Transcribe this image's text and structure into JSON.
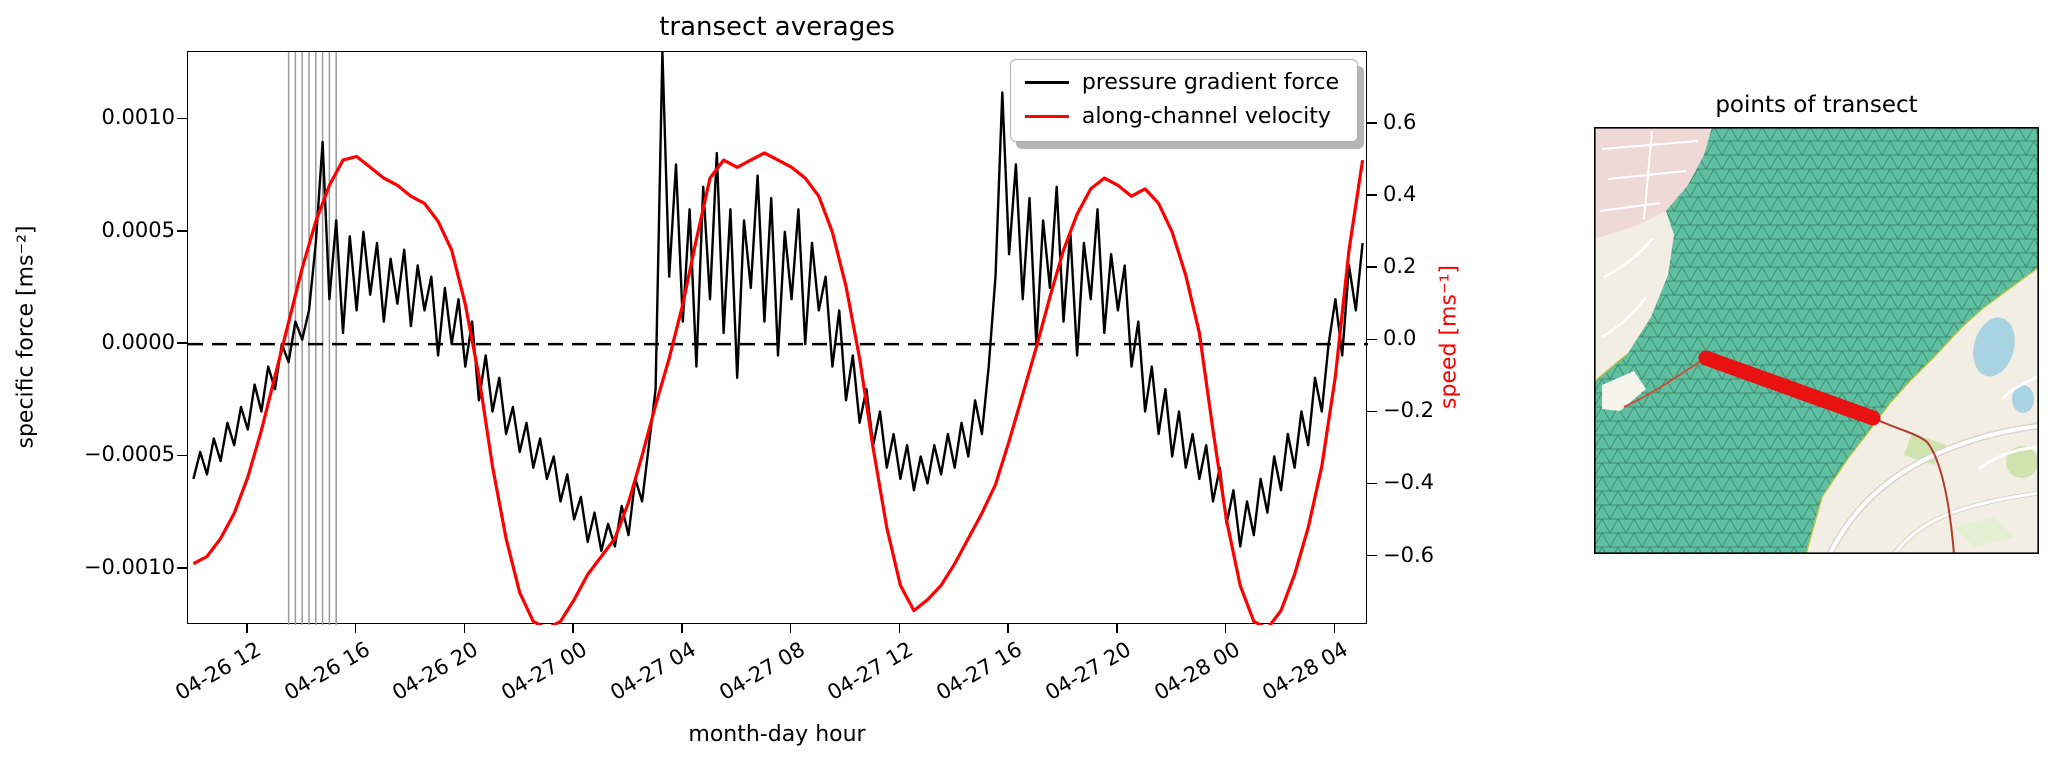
{
  "chart_data": {
    "type": "line",
    "title": "transect averages",
    "xlabel": "month-day hour",
    "ylabel_left": "specific force [ms⁻²]",
    "ylabel_right": "speed [ms⁻¹]",
    "x_unit": "hours since 04-26 00:00",
    "xlim": [
      9.8,
      53.2
    ],
    "ylim_left": [
      -0.00125,
      0.0013
    ],
    "ylim_right": [
      -0.79,
      0.8
    ],
    "grid": false,
    "zero_line": {
      "style": "dashed",
      "value": 0,
      "color": "#000000"
    },
    "event_vlines_t": [
      13.5,
      13.75,
      14.0,
      14.25,
      14.5,
      14.75,
      15.0,
      15.25
    ],
    "x_ticks": {
      "values": [
        12,
        16,
        20,
        24,
        28,
        32,
        36,
        40,
        44,
        48,
        52
      ],
      "labels": [
        "04-26 12",
        "04-26 16",
        "04-26 20",
        "04-27 00",
        "04-27 04",
        "04-27 08",
        "04-27 12",
        "04-27 16",
        "04-27 20",
        "04-28 00",
        "04-28 04"
      ]
    },
    "y_ticks_left": {
      "values": [
        0.001,
        0.0005,
        0.0,
        -0.0005,
        -0.001
      ],
      "labels": [
        "0.0010",
        "0.0005",
        "0.0000",
        "−0.0005",
        "−0.0010"
      ]
    },
    "y_ticks_right": {
      "values": [
        0.6,
        0.4,
        0.2,
        0.0,
        -0.2,
        -0.4,
        -0.6
      ],
      "labels": [
        "0.6",
        "0.4",
        "0.2",
        "0.0",
        "−0.2",
        "−0.4",
        "−0.6"
      ]
    },
    "legend": {
      "position": "upper right",
      "entries": [
        "pressure gradient force",
        "along-channel velocity"
      ]
    },
    "series": [
      {
        "name": "pressure gradient force",
        "color": "#000000",
        "axis": "left",
        "width": 2.4,
        "t0": 10.0,
        "dt": 0.25,
        "scale": 0.001,
        "values": [
          -0.6,
          -0.48,
          -0.58,
          -0.42,
          -0.52,
          -0.35,
          -0.45,
          -0.28,
          -0.38,
          -0.18,
          -0.3,
          -0.1,
          -0.2,
          0.0,
          -0.08,
          0.1,
          0.02,
          0.15,
          0.45,
          0.9,
          0.2,
          0.55,
          0.05,
          0.48,
          0.15,
          0.5,
          0.22,
          0.45,
          0.1,
          0.38,
          0.18,
          0.42,
          0.08,
          0.35,
          0.15,
          0.3,
          -0.05,
          0.25,
          0.0,
          0.2,
          -0.1,
          0.1,
          -0.25,
          -0.05,
          -0.3,
          -0.15,
          -0.4,
          -0.28,
          -0.48,
          -0.35,
          -0.55,
          -0.42,
          -0.6,
          -0.5,
          -0.7,
          -0.58,
          -0.78,
          -0.68,
          -0.88,
          -0.75,
          -0.92,
          -0.8,
          -0.9,
          -0.72,
          -0.85,
          -0.6,
          -0.7,
          -0.45,
          -0.2,
          1.3,
          0.3,
          0.8,
          0.1,
          0.6,
          -0.1,
          0.7,
          0.2,
          0.85,
          0.05,
          0.6,
          -0.15,
          0.55,
          0.25,
          0.75,
          0.1,
          0.65,
          -0.05,
          0.5,
          0.2,
          0.6,
          0.0,
          0.45,
          0.15,
          0.3,
          -0.1,
          0.15,
          -0.25,
          -0.05,
          -0.35,
          -0.2,
          -0.45,
          -0.3,
          -0.55,
          -0.4,
          -0.6,
          -0.45,
          -0.65,
          -0.5,
          -0.62,
          -0.45,
          -0.58,
          -0.4,
          -0.55,
          -0.35,
          -0.5,
          -0.25,
          -0.4,
          -0.1,
          0.3,
          1.12,
          0.4,
          0.8,
          0.2,
          0.65,
          0.0,
          0.55,
          0.25,
          0.7,
          0.1,
          0.5,
          -0.05,
          0.45,
          0.2,
          0.6,
          0.05,
          0.4,
          0.15,
          0.35,
          -0.1,
          0.1,
          -0.3,
          -0.1,
          -0.4,
          -0.2,
          -0.5,
          -0.3,
          -0.55,
          -0.4,
          -0.6,
          -0.45,
          -0.7,
          -0.55,
          -0.8,
          -0.65,
          -0.9,
          -0.7,
          -0.85,
          -0.6,
          -0.75,
          -0.5,
          -0.65,
          -0.4,
          -0.55,
          -0.3,
          -0.45,
          -0.15,
          -0.3,
          0.0,
          0.2,
          -0.05,
          0.35,
          0.15,
          0.45
        ]
      },
      {
        "name": "along-channel velocity",
        "color": "#ff0000",
        "axis": "right",
        "width": 3.2,
        "t0": 10.0,
        "dt": 0.5,
        "scale": 1,
        "values": [
          -0.62,
          -0.6,
          -0.55,
          -0.48,
          -0.38,
          -0.25,
          -0.1,
          0.05,
          0.2,
          0.33,
          0.43,
          0.5,
          0.51,
          0.48,
          0.45,
          0.43,
          0.4,
          0.38,
          0.33,
          0.25,
          0.1,
          -0.1,
          -0.35,
          -0.55,
          -0.7,
          -0.78,
          -0.8,
          -0.78,
          -0.72,
          -0.65,
          -0.6,
          -0.55,
          -0.45,
          -0.32,
          -0.18,
          -0.05,
          0.1,
          0.28,
          0.45,
          0.5,
          0.48,
          0.5,
          0.52,
          0.5,
          0.48,
          0.45,
          0.4,
          0.3,
          0.15,
          -0.05,
          -0.3,
          -0.52,
          -0.68,
          -0.75,
          -0.72,
          -0.68,
          -0.62,
          -0.55,
          -0.48,
          -0.4,
          -0.28,
          -0.15,
          -0.02,
          0.12,
          0.25,
          0.35,
          0.42,
          0.45,
          0.43,
          0.4,
          0.42,
          0.38,
          0.3,
          0.18,
          0.02,
          -0.25,
          -0.5,
          -0.68,
          -0.78,
          -0.8,
          -0.75,
          -0.65,
          -0.52,
          -0.35,
          -0.1,
          0.25,
          0.5
        ]
      }
    ]
  },
  "map": {
    "title": "points of transect",
    "water_color": "#5fc0a1",
    "mesh_line_color": "#2f7057",
    "mesh_boundary_color": "#b8c23f",
    "transect_color": "#e81212",
    "land_color": "#f2eee3",
    "urban_color": "#eed9d6",
    "pond_color": "#a9d3e0",
    "road_color": "#ffffff",
    "road_casing_color": "#d9d5c9",
    "shore_red": "#cf4a38",
    "rail_color": "#b23b2e",
    "park_color": "#cfe3ae"
  }
}
